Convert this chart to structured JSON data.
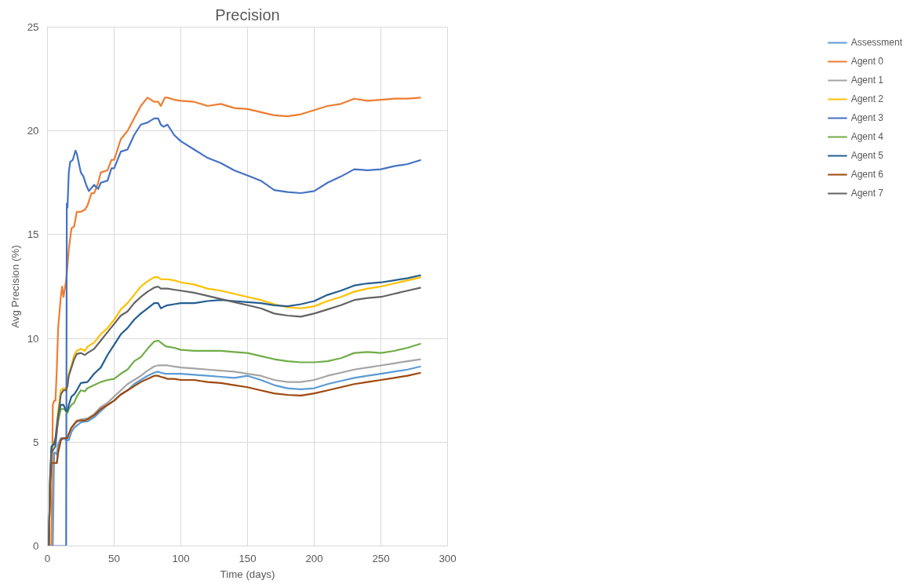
{
  "chart_data": {
    "type": "line",
    "title": "Precision",
    "xlabel": "Time (days)",
    "ylabel": "Avg Precision (%)",
    "xlim": [
      0,
      300
    ],
    "xticks": [
      0,
      50,
      100,
      150,
      200,
      250,
      300
    ],
    "ylim": [
      0,
      25
    ],
    "yticks": [
      0,
      5,
      10,
      15,
      20,
      25
    ],
    "grid": true,
    "legend": "right",
    "marker": "none",
    "line_style": "solid",
    "series": [
      {
        "name": "Assessment",
        "color": "#5b9bd5",
        "x": [
          1,
          4,
          5,
          6,
          7,
          8,
          10,
          12,
          14,
          15,
          16,
          18,
          20,
          22,
          25,
          28,
          30,
          35,
          40,
          45,
          50,
          55,
          60,
          65,
          70,
          75,
          80,
          83,
          85,
          88,
          90,
          95,
          100,
          110,
          120,
          130,
          140,
          150,
          160,
          170,
          180,
          190,
          200,
          210,
          220,
          230,
          240,
          250,
          260,
          270,
          280
        ],
        "values": [
          0,
          0,
          4.5,
          4.5,
          4.4,
          4.9,
          5.2,
          5.2,
          5.1,
          5.1,
          5.1,
          5.5,
          5.7,
          5.8,
          5.95,
          6.0,
          6.0,
          6.2,
          6.5,
          6.8,
          7.0,
          7.3,
          7.5,
          7.8,
          8.0,
          8.2,
          8.35,
          8.4,
          8.35,
          8.3,
          8.3,
          8.3,
          8.3,
          8.25,
          8.2,
          8.15,
          8.1,
          8.2,
          8.0,
          7.75,
          7.6,
          7.55,
          7.6,
          7.8,
          7.95,
          8.1,
          8.2,
          8.3,
          8.4,
          8.5,
          8.65
        ]
      },
      {
        "name": "Agent 0",
        "color": "#ed7d31",
        "x": [
          1,
          3,
          4,
          5,
          6,
          7,
          8,
          10,
          11,
          12,
          14,
          15,
          16,
          18,
          20,
          22,
          25,
          28,
          30,
          33,
          35,
          38,
          40,
          45,
          48,
          50,
          55,
          60,
          65,
          70,
          75,
          80,
          83,
          85,
          88,
          90,
          95,
          100,
          110,
          120,
          130,
          140,
          150,
          160,
          170,
          180,
          190,
          200,
          210,
          220,
          230,
          240,
          250,
          260,
          270,
          280
        ],
        "values": [
          0,
          0,
          6.8,
          7.0,
          7.0,
          8.5,
          10.5,
          12.0,
          12.5,
          12.0,
          12.8,
          13.5,
          14.3,
          15.3,
          15.4,
          16.1,
          16.1,
          16.2,
          16.4,
          17.0,
          17.0,
          17.5,
          18.0,
          18.1,
          18.6,
          18.6,
          19.6,
          20.0,
          20.6,
          21.2,
          21.6,
          21.4,
          21.4,
          21.2,
          21.6,
          21.6,
          21.5,
          21.45,
          21.4,
          21.2,
          21.3,
          21.1,
          21.05,
          20.9,
          20.75,
          20.7,
          20.8,
          21.0,
          21.2,
          21.3,
          21.55,
          21.45,
          21.5,
          21.55,
          21.55,
          21.6
        ]
      },
      {
        "name": "Agent 1",
        "color": "#a5a5a5",
        "x": [
          1,
          2,
          3,
          5,
          7,
          8,
          10,
          12,
          14,
          15,
          16,
          18,
          20,
          22,
          25,
          30,
          35,
          40,
          45,
          50,
          55,
          60,
          65,
          70,
          75,
          80,
          83,
          85,
          90,
          95,
          100,
          110,
          120,
          130,
          140,
          150,
          160,
          170,
          180,
          190,
          200,
          210,
          220,
          230,
          240,
          250,
          260,
          270,
          280
        ],
        "values": [
          0,
          3.5,
          4.0,
          4.0,
          4.0,
          4.5,
          5.1,
          5.2,
          5.2,
          5.2,
          5.4,
          5.7,
          5.9,
          6.05,
          6.1,
          6.15,
          6.35,
          6.7,
          6.9,
          7.2,
          7.5,
          7.8,
          8.0,
          8.2,
          8.45,
          8.65,
          8.7,
          8.7,
          8.7,
          8.65,
          8.6,
          8.55,
          8.5,
          8.45,
          8.4,
          8.3,
          8.2,
          8.0,
          7.9,
          7.9,
          8.0,
          8.2,
          8.35,
          8.5,
          8.6,
          8.7,
          8.8,
          8.9,
          9.0
        ]
      },
      {
        "name": "Agent 2",
        "color": "#ffc000",
        "x": [
          1,
          2,
          3,
          5,
          6,
          8,
          10,
          12,
          14,
          15,
          16,
          18,
          20,
          22,
          25,
          28,
          30,
          35,
          40,
          45,
          50,
          55,
          60,
          65,
          70,
          75,
          80,
          83,
          85,
          90,
          95,
          100,
          110,
          120,
          130,
          140,
          150,
          160,
          170,
          180,
          190,
          200,
          210,
          220,
          230,
          240,
          250,
          260,
          270,
          280
        ],
        "values": [
          0,
          3.0,
          4.6,
          5.0,
          5.1,
          6.5,
          7.5,
          7.6,
          7.6,
          7.8,
          8.3,
          8.7,
          9.2,
          9.4,
          9.5,
          9.4,
          9.6,
          9.8,
          10.2,
          10.5,
          10.9,
          11.4,
          11.7,
          12.1,
          12.5,
          12.75,
          12.95,
          12.95,
          12.85,
          12.85,
          12.8,
          12.7,
          12.6,
          12.4,
          12.3,
          12.15,
          12.0,
          11.85,
          11.65,
          11.5,
          11.45,
          11.55,
          11.8,
          12.0,
          12.25,
          12.4,
          12.5,
          12.65,
          12.8,
          12.95
        ]
      },
      {
        "name": "Agent 3",
        "color": "#4472c4",
        "x": [
          1,
          14,
          14.5,
          15,
          16,
          17,
          19,
          21,
          22,
          25,
          27,
          29,
          31,
          35,
          38,
          40,
          45,
          48,
          50,
          55,
          60,
          65,
          70,
          75,
          80,
          83,
          85,
          87,
          90,
          95,
          100,
          110,
          120,
          130,
          140,
          150,
          160,
          170,
          180,
          190,
          200,
          210,
          220,
          230,
          240,
          250,
          260,
          270,
          280
        ],
        "values": [
          0,
          0,
          16.5,
          16.3,
          18.0,
          18.5,
          18.6,
          19.05,
          18.9,
          18.0,
          17.8,
          17.4,
          17.1,
          17.4,
          17.2,
          17.5,
          17.6,
          18.2,
          18.2,
          19.0,
          19.1,
          19.8,
          20.3,
          20.4,
          20.6,
          20.6,
          20.3,
          20.2,
          20.3,
          19.8,
          19.5,
          19.1,
          18.7,
          18.45,
          18.1,
          17.85,
          17.6,
          17.15,
          17.05,
          17.0,
          17.1,
          17.5,
          17.8,
          18.15,
          18.1,
          18.15,
          18.3,
          18.4,
          18.6
        ]
      },
      {
        "name": "Agent 4",
        "color": "#70ad47",
        "x": [
          1,
          2,
          3,
          5,
          6,
          8,
          10,
          12,
          14,
          15,
          16,
          18,
          20,
          22,
          25,
          28,
          30,
          35,
          40,
          45,
          50,
          55,
          60,
          65,
          70,
          75,
          80,
          83,
          85,
          88,
          90,
          95,
          100,
          110,
          120,
          130,
          140,
          150,
          160,
          170,
          180,
          190,
          200,
          210,
          220,
          230,
          240,
          250,
          260,
          270,
          280
        ],
        "values": [
          0,
          3.2,
          4.7,
          5.0,
          5.1,
          6.0,
          6.6,
          6.6,
          6.5,
          6.4,
          6.6,
          6.8,
          6.9,
          7.2,
          7.5,
          7.45,
          7.6,
          7.75,
          7.9,
          8.0,
          8.05,
          8.3,
          8.5,
          8.9,
          9.1,
          9.5,
          9.85,
          9.9,
          9.8,
          9.65,
          9.6,
          9.55,
          9.45,
          9.4,
          9.4,
          9.4,
          9.35,
          9.3,
          9.15,
          9.0,
          8.9,
          8.85,
          8.85,
          8.9,
          9.05,
          9.3,
          9.35,
          9.3,
          9.4,
          9.55,
          9.75
        ]
      },
      {
        "name": "Agent 5",
        "color": "#255e91",
        "x": [
          1,
          2,
          3,
          5,
          6,
          8,
          10,
          12,
          14,
          15,
          16,
          18,
          20,
          22,
          25,
          30,
          35,
          40,
          45,
          50,
          55,
          60,
          65,
          70,
          75,
          80,
          83,
          85,
          88,
          90,
          95,
          100,
          110,
          120,
          130,
          140,
          150,
          160,
          170,
          180,
          190,
          200,
          210,
          220,
          230,
          240,
          250,
          260,
          270,
          280
        ],
        "values": [
          0,
          3.3,
          4.8,
          4.9,
          5.2,
          6.3,
          6.8,
          6.8,
          6.5,
          6.5,
          6.8,
          7.2,
          7.3,
          7.5,
          7.85,
          7.9,
          8.3,
          8.6,
          9.2,
          9.7,
          10.2,
          10.5,
          10.9,
          11.2,
          11.45,
          11.7,
          11.7,
          11.45,
          11.55,
          11.6,
          11.65,
          11.7,
          11.7,
          11.8,
          11.85,
          11.8,
          11.75,
          11.7,
          11.6,
          11.55,
          11.65,
          11.8,
          12.1,
          12.3,
          12.55,
          12.65,
          12.7,
          12.8,
          12.9,
          13.05
        ]
      },
      {
        "name": "Agent 6",
        "color": "#9e480e",
        "x": [
          1,
          2,
          3,
          5,
          7,
          8,
          10,
          12,
          14,
          15,
          16,
          18,
          20,
          22,
          25,
          28,
          30,
          35,
          40,
          45,
          50,
          55,
          60,
          65,
          70,
          75,
          80,
          83,
          85,
          88,
          90,
          95,
          100,
          110,
          120,
          130,
          140,
          150,
          160,
          170,
          180,
          190,
          200,
          210,
          220,
          230,
          240,
          250,
          260,
          270,
          280
        ],
        "values": [
          0,
          3.0,
          4.0,
          4.0,
          4.0,
          4.5,
          5.1,
          5.2,
          5.2,
          5.2,
          5.4,
          5.7,
          5.85,
          6.0,
          6.05,
          6.05,
          6.1,
          6.3,
          6.6,
          6.8,
          7.0,
          7.3,
          7.5,
          7.7,
          7.9,
          8.05,
          8.2,
          8.2,
          8.15,
          8.1,
          8.05,
          8.05,
          8.0,
          8.0,
          7.9,
          7.85,
          7.75,
          7.65,
          7.5,
          7.35,
          7.28,
          7.25,
          7.35,
          7.5,
          7.65,
          7.8,
          7.9,
          8.0,
          8.1,
          8.2,
          8.35
        ]
      },
      {
        "name": "Agent 7",
        "color": "#636363",
        "x": [
          1,
          2,
          3,
          5,
          6,
          8,
          10,
          12,
          14,
          15,
          16,
          18,
          20,
          22,
          25,
          28,
          30,
          35,
          40,
          45,
          50,
          55,
          60,
          65,
          70,
          75,
          80,
          83,
          85,
          90,
          95,
          100,
          110,
          120,
          130,
          140,
          150,
          160,
          170,
          180,
          190,
          200,
          210,
          220,
          230,
          240,
          250,
          260,
          270,
          280
        ],
        "values": [
          0,
          3.1,
          4.5,
          4.7,
          4.8,
          6.2,
          7.3,
          7.5,
          7.5,
          7.7,
          8.2,
          8.6,
          9.0,
          9.25,
          9.3,
          9.2,
          9.3,
          9.5,
          9.9,
          10.3,
          10.7,
          11.1,
          11.3,
          11.7,
          12.0,
          12.25,
          12.45,
          12.5,
          12.4,
          12.4,
          12.35,
          12.3,
          12.2,
          12.05,
          11.9,
          11.75,
          11.6,
          11.45,
          11.2,
          11.1,
          11.05,
          11.2,
          11.4,
          11.6,
          11.85,
          11.95,
          12.0,
          12.15,
          12.3,
          12.45
        ]
      }
    ]
  }
}
